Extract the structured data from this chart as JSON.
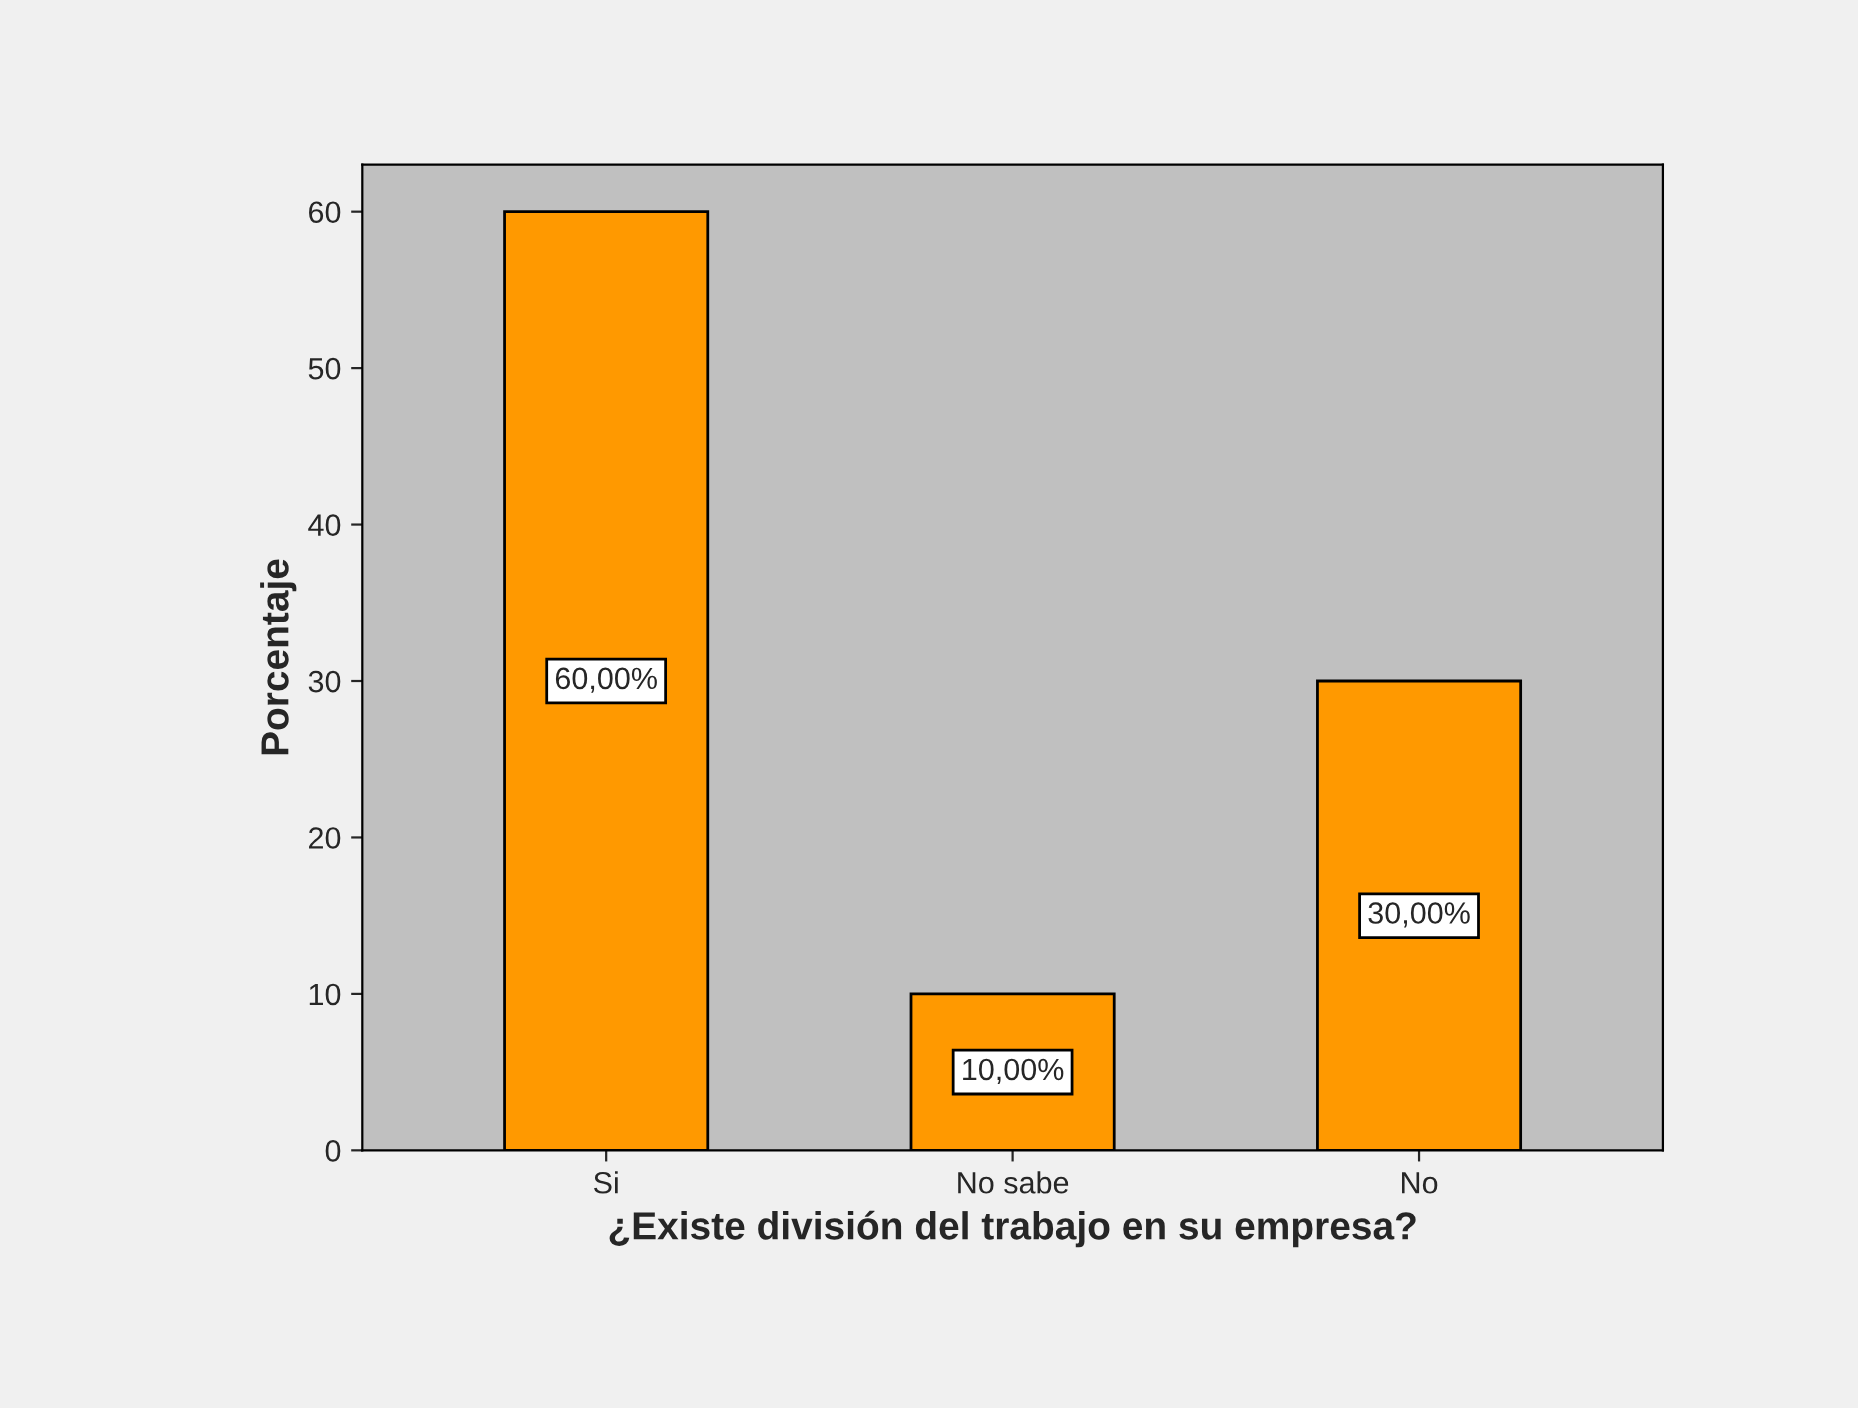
{
  "chart_data": {
    "type": "bar",
    "xlabel": "¿Existe división del trabajo en su empresa?",
    "ylabel": "Porcentaje",
    "categories": [
      "Si",
      "No sabe",
      "No"
    ],
    "values": [
      60,
      10,
      30
    ],
    "value_labels": [
      "60,00%",
      "10,00%",
      "30,00%"
    ],
    "color": "#ff9900",
    "ylim": [
      0,
      63
    ],
    "yticks": [
      0,
      10,
      20,
      30,
      40,
      50,
      60
    ],
    "grid": false
  }
}
